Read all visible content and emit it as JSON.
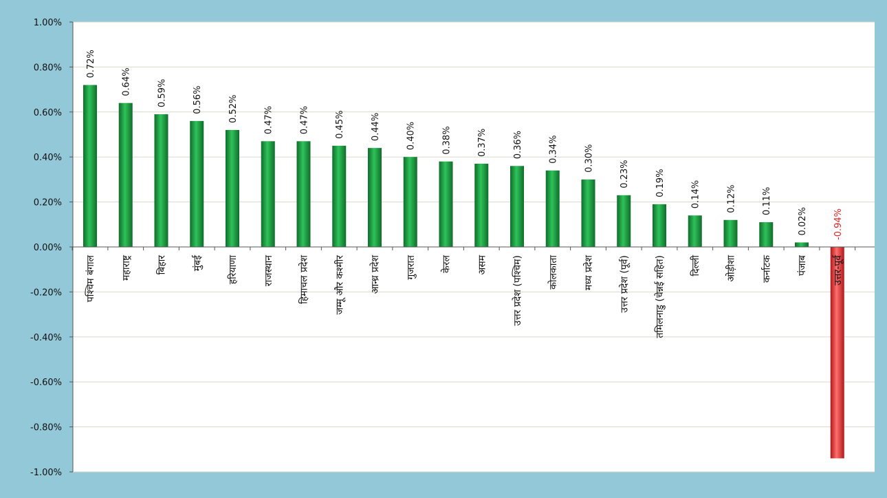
{
  "chart_data": {
    "type": "bar",
    "title": "",
    "xlabel": "",
    "ylabel": "",
    "ylim": [
      -0.01,
      0.01
    ],
    "y_ticks": [
      "1.00%",
      "0.80%",
      "0.60%",
      "0.40%",
      "0.20%",
      "0.00%",
      "-0.20%",
      "-0.40%",
      "-0.60%",
      "-0.80%",
      "-1.00%"
    ],
    "y_tick_values": [
      0.01,
      0.008,
      0.006,
      0.004,
      0.002,
      0.0,
      -0.002,
      -0.004,
      -0.006,
      -0.008,
      -0.01
    ],
    "grid": true,
    "categories": [
      "पश्चिम बंगाल",
      "महाराष्ट्र",
      "बिहार",
      "मुंबई",
      "हरियाणा",
      "राजस्थान",
      "हिमाचल प्रदेश",
      "जम्मू और कश्मीर",
      "आन्ध्र प्रदेश",
      "गुजरात",
      "केरल",
      "असम",
      "उत्तर प्रदेश (पश्चिम)",
      "कोलकाता",
      "मध्य प्रदेश",
      "उत्तर प्रदेश (पूर्व)",
      "तमिलनाडु (चेन्नई सहित)",
      "दिल्ली",
      "ओड़ीशा",
      "कर्नाटक",
      "पंजाब",
      "उत्तर-पूर्व"
    ],
    "values": [
      0.0072,
      0.0064,
      0.0059,
      0.0056,
      0.0052,
      0.0047,
      0.0047,
      0.0045,
      0.0044,
      0.004,
      0.0038,
      0.0037,
      0.0036,
      0.0034,
      0.003,
      0.0023,
      0.0019,
      0.0014,
      0.0012,
      0.0011,
      0.0002,
      -0.0094
    ],
    "data_labels": [
      "0.72%",
      "0.64%",
      "0.59%",
      "0.56%",
      "0.52%",
      "0.47%",
      "0.47%",
      "0.45%",
      "0.44%",
      "0.40%",
      "0.38%",
      "0.37%",
      "0.36%",
      "0.34%",
      "0.30%",
      "0.23%",
      "0.19%",
      "0.14%",
      "0.12%",
      "0.11%",
      "0.02%",
      "-0.94%"
    ],
    "colors": {
      "positive": "#1f9a3f",
      "negative": "#e23b3b",
      "negative_label": "#e02020",
      "plot_bg": "#ffffff",
      "frame_bg": "#93c8d8",
      "grid": "#d8d8c8"
    }
  }
}
